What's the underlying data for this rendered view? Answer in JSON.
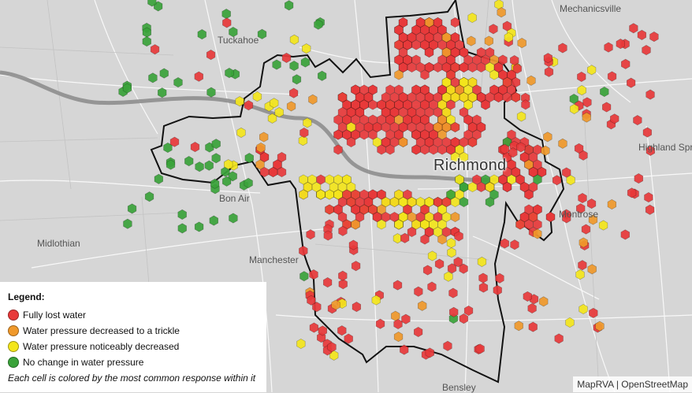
{
  "map": {
    "places": [
      {
        "key": "mechanicsville",
        "name": "Mechanicsville"
      },
      {
        "key": "tuckahoe",
        "name": "Tuckahoe"
      },
      {
        "key": "richmond",
        "name": "Richmond"
      },
      {
        "key": "highland_springs",
        "name": "Highland Spr"
      },
      {
        "key": "bon_air",
        "name": "Bon Air"
      },
      {
        "key": "montrose",
        "name": "Montrose"
      },
      {
        "key": "midlothian",
        "name": "Midlothian"
      },
      {
        "key": "manchester",
        "name": "Manchester"
      },
      {
        "key": "bensley",
        "name": "Bensley"
      }
    ]
  },
  "legend": {
    "title": "Legend:",
    "items": [
      {
        "label": "Fully lost water",
        "color": "#e8393a"
      },
      {
        "label": "Water pressure decreased to a trickle",
        "color": "#f0992b"
      },
      {
        "label": "Water pressure noticeably decreased",
        "color": "#f4e61c"
      },
      {
        "label": "No change in water pressure",
        "color": "#3aa33a"
      }
    ],
    "note": "Each cell is colored by the most common response within it"
  },
  "attribution": "MapRVA | OpenStreetMap",
  "colors": {
    "red": "#e8393a",
    "orange": "#f0992b",
    "yellow": "#f4e61c",
    "green": "#3aa33a",
    "background": "#d6d6d6",
    "river": "#8e8e8e",
    "boundary": "#111111"
  }
}
